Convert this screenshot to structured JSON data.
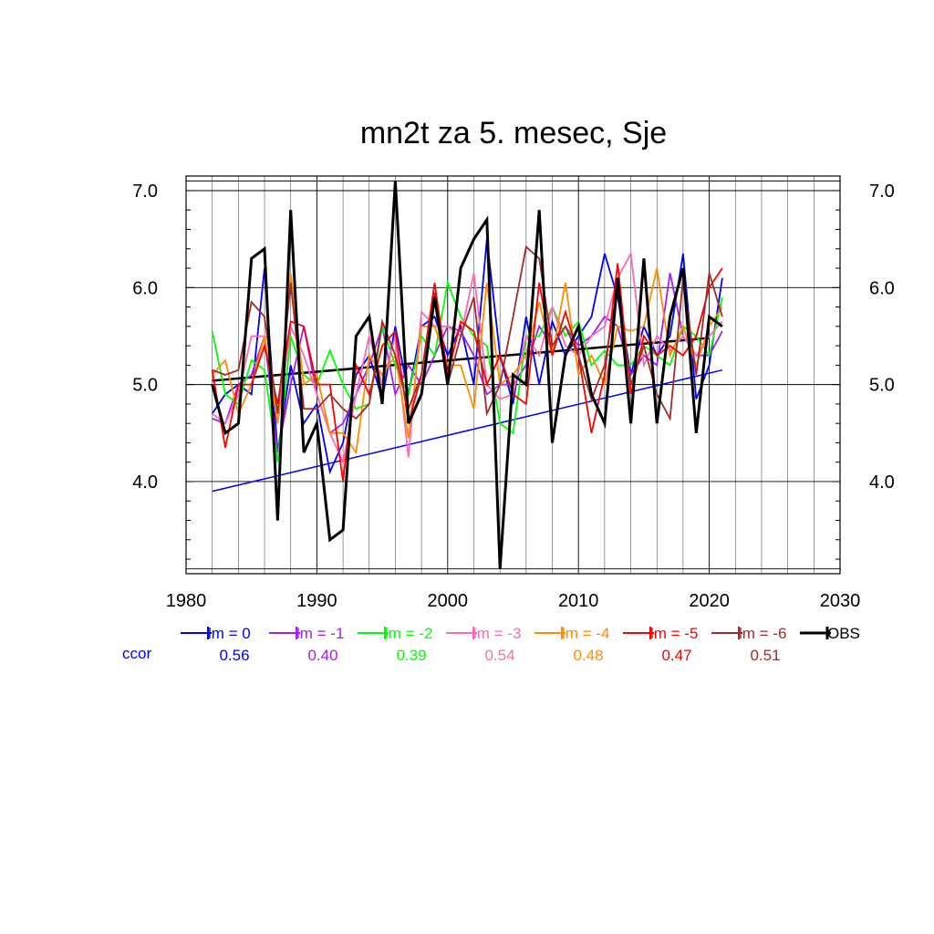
{
  "chart_data": {
    "type": "line",
    "title": "mn2t za 5. mesec, Sje",
    "xlabel": "",
    "ylabel": "",
    "xlim": [
      1980,
      2030
    ],
    "ylim": [
      3.1,
      7.1
    ],
    "x_ticks": [
      "1980",
      "1990",
      "2000",
      "2010",
      "2020",
      "2030"
    ],
    "y_ticks": [
      "4.0",
      "5.0",
      "6.0",
      "7.0"
    ],
    "grid": true,
    "legend_position": "bottom",
    "corr_label": "ccor",
    "x": [
      1982,
      1983,
      1984,
      1985,
      1986,
      1987,
      1988,
      1989,
      1990,
      1991,
      1992,
      1993,
      1994,
      1995,
      1996,
      1997,
      1998,
      1999,
      2000,
      2001,
      2002,
      2003,
      2004,
      2005,
      2006,
      2007,
      2008,
      2009,
      2010,
      2011,
      2012,
      2013,
      2014,
      2015,
      2016,
      2017,
      2018,
      2019,
      2020,
      2021
    ],
    "series": [
      {
        "name": "lm = 0",
        "color": "#0000ff",
        "corr": "0.56",
        "values": [
          4.7,
          4.9,
          5.0,
          4.9,
          6.2,
          4.3,
          5.2,
          4.6,
          4.8,
          4.1,
          4.4,
          5.1,
          5.3,
          4.85,
          5.6,
          4.9,
          5.6,
          5.7,
          5.3,
          5.6,
          5.0,
          6.5,
          5.3,
          4.8,
          5.7,
          5.0,
          5.65,
          5.3,
          5.5,
          5.7,
          6.35,
          5.9,
          5.1,
          5.6,
          5.3,
          5.5,
          6.35,
          4.85,
          5.2,
          6.1
        ]
      },
      {
        "name": "lm = -1",
        "color": "#a020f0",
        "corr": "0.40",
        "values": [
          4.65,
          4.6,
          5.0,
          5.1,
          5.5,
          4.3,
          5.0,
          5.6,
          4.9,
          4.5,
          4.6,
          4.9,
          5.2,
          5.6,
          4.9,
          5.2,
          5.0,
          5.3,
          5.6,
          5.55,
          5.3,
          4.9,
          5.0,
          5.0,
          5.2,
          5.6,
          5.4,
          5.6,
          5.4,
          5.5,
          5.7,
          5.6,
          5.1,
          5.3,
          5.2,
          6.15,
          5.5,
          5.3,
          5.3,
          5.55
        ]
      },
      {
        "name": "lm = -2",
        "color": "#00ff00",
        "corr": "0.39",
        "values": [
          5.55,
          4.9,
          4.8,
          5.25,
          5.15,
          4.2,
          5.5,
          5.1,
          5.0,
          5.35,
          5.0,
          4.75,
          4.8,
          5.6,
          5.2,
          4.9,
          5.5,
          5.3,
          6.05,
          5.7,
          5.5,
          5.4,
          4.6,
          4.5,
          5.5,
          5.5,
          5.8,
          5.5,
          5.65,
          5.2,
          5.35,
          5.2,
          5.2,
          5.4,
          5.3,
          5.2,
          5.6,
          5.5,
          5.3,
          5.9
        ]
      },
      {
        "name": "lm = -3",
        "color": "#ff69b4",
        "corr": "0.54",
        "values": [
          4.7,
          4.6,
          4.9,
          5.5,
          5.5,
          4.6,
          5.6,
          5.3,
          4.9,
          4.5,
          4.2,
          4.9,
          5.5,
          5.0,
          5.5,
          4.25,
          5.75,
          5.6,
          5.6,
          5.5,
          6.15,
          5.0,
          4.85,
          4.9,
          5.5,
          5.3,
          5.8,
          5.4,
          5.3,
          5.5,
          5.6,
          6.1,
          6.35,
          5.2,
          5.5,
          5.35,
          5.5,
          5.3,
          5.5,
          5.65
        ]
      },
      {
        "name": "lm = -4",
        "color": "#ff8c00",
        "corr": "0.48",
        "values": [
          5.1,
          5.25,
          4.7,
          5.0,
          5.5,
          4.6,
          6.15,
          5.0,
          5.1,
          4.5,
          4.5,
          4.3,
          5.3,
          5.1,
          5.3,
          4.45,
          5.6,
          5.6,
          5.2,
          5.2,
          4.75,
          6.05,
          5.0,
          5.1,
          5.3,
          5.85,
          5.3,
          6.05,
          5.1,
          5.3,
          5.0,
          5.6,
          5.55,
          5.6,
          6.2,
          5.3,
          5.6,
          5.2,
          5.6,
          5.8
        ]
      },
      {
        "name": "lm = -5",
        "color": "#ff0000",
        "corr": "0.47",
        "values": [
          5.15,
          4.35,
          5.0,
          5.0,
          5.4,
          4.8,
          5.65,
          5.6,
          5.0,
          5.0,
          4.0,
          5.2,
          4.9,
          5.4,
          5.55,
          4.6,
          5.1,
          6.05,
          5.1,
          5.65,
          5.55,
          5.0,
          5.3,
          4.9,
          4.8,
          6.05,
          5.3,
          5.75,
          5.3,
          4.5,
          5.1,
          6.25,
          4.9,
          5.5,
          5.3,
          5.4,
          5.3,
          5.5,
          6.0,
          6.2
        ]
      },
      {
        "name": "lm = -6",
        "color": "#a52a2a",
        "corr": "0.51",
        "values": [
          5.15,
          5.1,
          5.15,
          5.85,
          5.7,
          4.7,
          6.05,
          4.75,
          4.75,
          4.9,
          4.75,
          4.65,
          4.8,
          5.65,
          5.3,
          4.75,
          5.1,
          5.95,
          5.0,
          5.5,
          5.9,
          4.7,
          5.0,
          5.7,
          6.42,
          6.3,
          5.4,
          5.6,
          5.3,
          4.85,
          5.2,
          6.0,
          5.0,
          5.4,
          4.9,
          4.65,
          6.1,
          5.1,
          6.15,
          5.7
        ]
      },
      {
        "name": "OBS",
        "color": "#000000",
        "values": [
          5.0,
          4.5,
          4.6,
          6.3,
          6.4,
          3.6,
          6.8,
          4.3,
          4.6,
          3.4,
          3.5,
          5.5,
          5.7,
          4.8,
          7.1,
          4.6,
          4.9,
          5.9,
          5.0,
          6.2,
          6.5,
          6.7,
          3.1,
          5.1,
          5.0,
          6.8,
          4.4,
          5.3,
          5.6,
          4.9,
          4.6,
          6.1,
          4.6,
          6.3,
          4.6,
          5.7,
          6.2,
          4.5,
          5.7,
          5.6
        ]
      }
    ],
    "trend_lines": [
      {
        "color": "#0000ff",
        "x": [
          1982,
          2021
        ],
        "y": [
          3.9,
          5.15
        ]
      },
      {
        "color": "#000000",
        "x": [
          1982,
          2020
        ],
        "y": [
          5.04,
          5.48
        ]
      }
    ],
    "reference_lines": [
      7.0,
      7.1
    ]
  }
}
